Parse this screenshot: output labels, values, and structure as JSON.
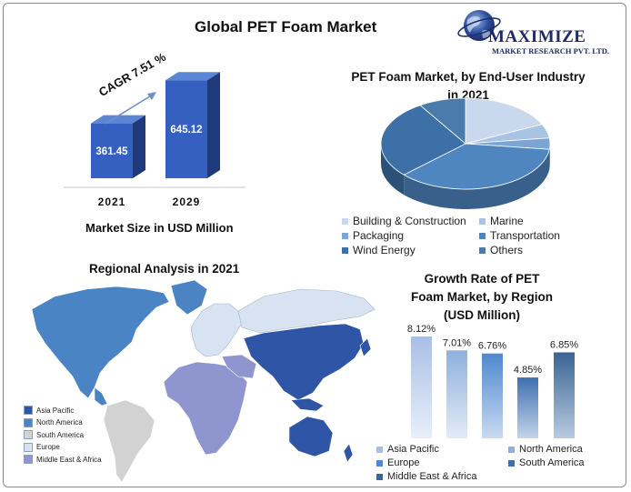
{
  "main_title": "Global PET Foam Market",
  "logo": {
    "name": "MAXIMIZE",
    "sub": "MARKET RESEARCH PVT. LTD."
  },
  "colors": {
    "dark_blue": "#2e55a6",
    "mid_blue": "#4a84c4",
    "light_blue": "#c3d4ea",
    "slate_blue": "#3f6e9a",
    "lavender": "#8f96cf",
    "grey": "#d2d2d2",
    "pale_blue": "#d8e3f1"
  },
  "chart_data": [
    {
      "type": "bar",
      "title": "Market Size in USD Million",
      "categories": [
        "2021",
        "2029"
      ],
      "values": [
        361.45,
        645.12
      ],
      "annotation": "CAGR 7.51 %"
    },
    {
      "type": "pie",
      "title": "PET Foam Market, by End-User Industry in 2021",
      "labels": [
        "Building & Construction",
        "Marine",
        "Packaging",
        "Transportation",
        "Wind Energy",
        "Others"
      ],
      "colors": [
        "#c9d8ec",
        "#a9c3e2",
        "#7da5d3",
        "#4f86c0",
        "#3d70a7",
        "#4b7baa"
      ],
      "values": [
        18,
        5,
        4,
        36,
        28,
        9
      ],
      "legend": "bottom"
    },
    {
      "type": "bar",
      "title": "Growth Rate of PET Foam Market, by Region (USD Million)",
      "categories": [
        "Asia Pacific",
        "North America",
        "Europe",
        "South America",
        "Middle East & Africa"
      ],
      "values": [
        8.12,
        7.01,
        6.76,
        4.85,
        6.85
      ],
      "data_labels": [
        "8.12%",
        "7.01%",
        "6.76%",
        "4.85%",
        "6.85%"
      ],
      "legend": "bottom"
    }
  ],
  "map": {
    "title": "Regional Analysis in 2021",
    "legend": [
      "Asia Pacific",
      "North America",
      "South America",
      "Europe",
      "Middle East & Africa"
    ]
  }
}
